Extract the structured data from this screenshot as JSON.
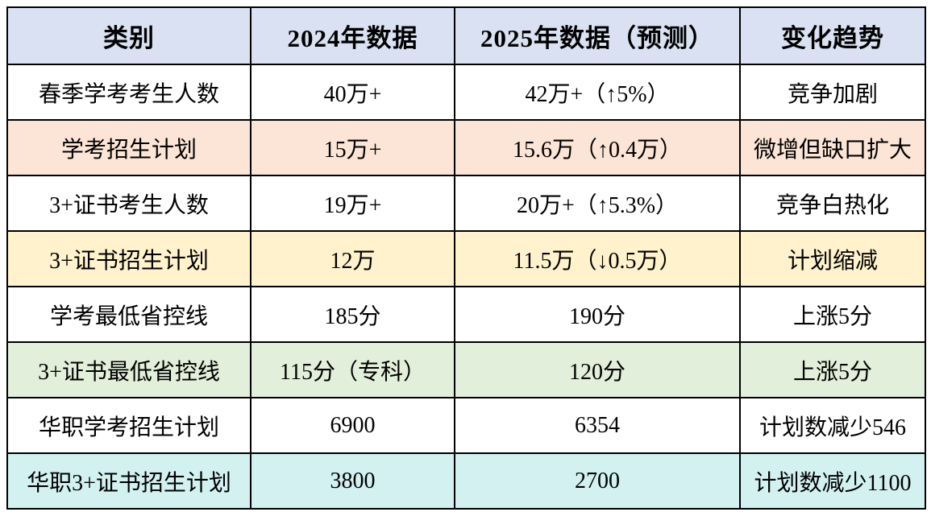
{
  "chart_data": {
    "type": "table",
    "columns": [
      "类别",
      "2024年数据",
      "2025年数据（预测）",
      "变化趋势"
    ],
    "rows": [
      {
        "cells": [
          "春季学考考生人数",
          "40万+",
          "42万+（↑5%）",
          "竞争加剧"
        ],
        "bg": "#ffffff"
      },
      {
        "cells": [
          "学考招生计划",
          "15万+",
          "15.6万（↑0.4万）",
          "微增但缺口扩大"
        ],
        "bg": "#fce4d6"
      },
      {
        "cells": [
          "3+证书考生人数",
          "19万+",
          "20万+（↑5.3%）",
          "竞争白热化"
        ],
        "bg": "#ffffff"
      },
      {
        "cells": [
          "3+证书招生计划",
          "12万",
          "11.5万（↓0.5万）",
          "计划缩减"
        ],
        "bg": "#fff2cc"
      },
      {
        "cells": [
          "学考最低省控线",
          "185分",
          "190分",
          "上涨5分"
        ],
        "bg": "#ffffff"
      },
      {
        "cells": [
          "3+证书最低省控线",
          "115分（专科）",
          "120分",
          "上涨5分"
        ],
        "bg": "#e2efda"
      },
      {
        "cells": [
          "华职学考招生计划",
          "6900",
          "6354",
          "计划数减少546"
        ],
        "bg": "#ffffff"
      },
      {
        "cells": [
          "华职3+证书招生计划",
          "3800",
          "2700",
          "计划数减少1100"
        ],
        "bg": "#d2f1f0"
      }
    ]
  },
  "colors": {
    "header_bg": "#d9e1f2",
    "row_highlight_orange": "#fce4d6",
    "row_highlight_yellow": "#fff2cc",
    "row_highlight_green": "#e2efda",
    "row_highlight_cyan": "#d2f1f0",
    "border": "#000000",
    "text": "#000000"
  }
}
